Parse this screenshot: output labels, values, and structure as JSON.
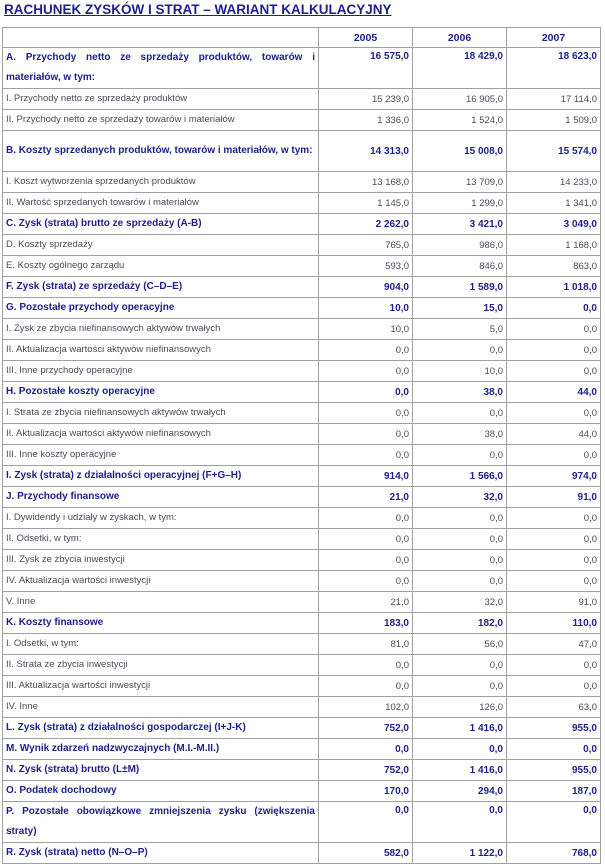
{
  "title": "RACHUNEK ZYSKÓW I STRAT – WARIANT KALKULACYJNY",
  "table": {
    "columns": [
      "2005",
      "2006",
      "2007"
    ],
    "rows": [
      [
        "A. Przychody netto ze sprzedaży produktów, towarów i materiałów, w tym:",
        "16 575,0",
        "18 429,0",
        "18 623,0"
      ],
      [
        "I. Przychody netto ze sprzedaży produktów",
        "15 239,0",
        "16 905,0",
        "17 114,0"
      ],
      [
        "II. Przychody netto ze sprzedaży towarów i materiałów",
        "1 336,0",
        "1 524,0",
        "1 509,0"
      ],
      [
        "B. Koszty sprzedanych produktów, towarów i materiałów, w tym:",
        "14 313,0",
        "15 008,0",
        "15 574,0"
      ],
      [
        "I. Koszt wytworzenia sprzedanych produktów",
        "13 168,0",
        "13 709,0",
        "14 233,0"
      ],
      [
        "II. Wartość sprzedanych towarów i materiałów",
        "1 145,0",
        "1 299,0",
        "1 341,0"
      ],
      [
        "C. Zysk (strata) brutto ze sprzedaży (A-B)",
        "2 262,0",
        "3 421,0",
        "3 049,0"
      ],
      [
        "D. Koszty sprzedaży",
        "765,0",
        "986,0",
        "1 168,0"
      ],
      [
        "E. Koszty ogólnego zarządu",
        "593,0",
        "846,0",
        "863,0"
      ],
      [
        "F. Zysk (strata) ze sprzedaży (C–D–E)",
        "904,0",
        "1 589,0",
        "1 018,0"
      ],
      [
        "G. Pozostałe przychody operacyjne",
        "10,0",
        "15,0",
        "0,0"
      ],
      [
        "I. Zysk ze zbycia niefinansowych aktywów trwałych",
        "10,0",
        "5,0",
        "0,0"
      ],
      [
        "II. Aktualizacja wartości aktywów niefinansowych",
        "0,0",
        "0,0",
        "0,0"
      ],
      [
        "III. Inne przychody operacyjne",
        "0,0",
        "10,0",
        "0,0"
      ],
      [
        "H. Pozostałe koszty operacyjne",
        "0,0",
        "38,0",
        "44,0"
      ],
      [
        "I. Strata ze zbycia niefinansowych aktywów trwałych",
        "0,0",
        "0,0",
        "0,0"
      ],
      [
        "II. Aktualizacja wartości aktywów niefinansowych",
        "0,0",
        "38,0",
        "44,0"
      ],
      [
        "III. Inne koszty operacyjne",
        "0,0",
        "0,0",
        "0,0"
      ],
      [
        "I. Zysk (strata) z działalności operacyjnej (F+G–H)",
        "914,0",
        "1 566,0",
        "974,0"
      ],
      [
        "J. Przychody finansowe",
        "21,0",
        "32,0",
        "91,0"
      ],
      [
        "I. Dywidendy i udziały w zyskach, w tym:",
        "0,0",
        "0,0",
        "0,0"
      ],
      [
        "II. Odsetki, w tym:",
        "0,0",
        "0,0",
        "0,0"
      ],
      [
        "III. Zysk ze zbycia inwestycji",
        "0,0",
        "0,0",
        "0,0"
      ],
      [
        "IV. Aktualizacja wartości inwestycji",
        "0,0",
        "0,0",
        "0,0"
      ],
      [
        "V. Inne",
        "21,0",
        "32,0",
        "91,0"
      ],
      [
        "K. Koszty finansowe",
        "183,0",
        "182,0",
        "110,0"
      ],
      [
        "I. Odsetki, w tym:",
        "81,0",
        "56,0",
        "47,0"
      ],
      [
        "II. Strata ze zbycia inwestycji",
        "0,0",
        "0,0",
        "0,0"
      ],
      [
        "III. Aktualizacja wartości inwestycji",
        "0,0",
        "0,0",
        "0,0"
      ],
      [
        "IV. Inne",
        "102,0",
        "126,0",
        "63,0"
      ],
      [
        "L. Zysk (strata) z działalności gospodarczej (I+J-K)",
        "752,0",
        "1 416,0",
        "955,0"
      ],
      [
        "M. Wynik zdarzeń nadzwyczajnych (M.I.-M.II.)",
        "0,0",
        "0,0",
        "0,0"
      ],
      [
        "N. Zysk (strata) brutto (L±M)",
        "752,0",
        "1 416,0",
        "955,0"
      ],
      [
        "O. Podatek dochodowy",
        "170,0",
        "294,0",
        "187,0"
      ],
      [
        "P. Pozostałe obowiązkowe zmniejszenia zysku (zwiększenia straty)",
        "0,0",
        "0,0",
        "0,0"
      ],
      [
        "R. Zysk (strata) netto (N–O–P)",
        "582,0",
        "1 122,0",
        "768,0"
      ]
    ]
  }
}
